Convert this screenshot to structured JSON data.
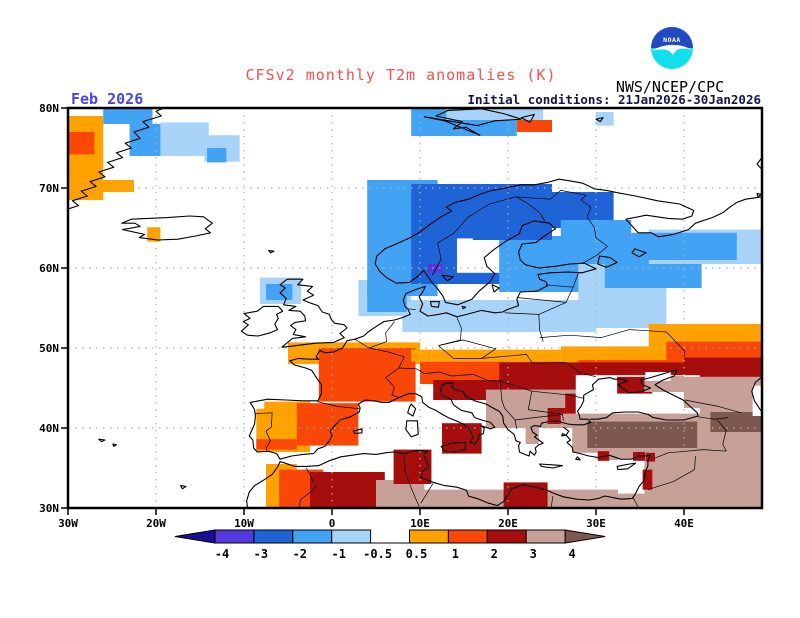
{
  "header": {
    "title": "CFSv2 monthly T2m anomalies (K)",
    "agency": "NWS/NCEP/CPC",
    "noaa_label": "NOAA",
    "date_label": "Feb 2026",
    "init_label": "Initial conditions: 21Jan2026-30Jan2026"
  },
  "colors": {
    "title": "#f75050",
    "date_label": "#4545e0",
    "init_label": "#15154d",
    "logo_blue": "#2448c0",
    "logo_cyan": "#12dfee",
    "grid": "#b2b2b2",
    "frame": "#000000",
    "classes": {
      "m_arrow": "#1c0d96",
      "m4": "#5639dd",
      "m3": "#1e64d6",
      "m2": "#42a3f5",
      "m1": "#a8d3f8",
      "white": "#ffffff",
      "p1": "#ffa200",
      "p2": "#f94708",
      "p3": "#a60d0d",
      "p4": "#c7a198",
      "p5": "#7d584e"
    }
  },
  "map": {
    "lat_ticks": [
      {
        "label": "80N",
        "lat": 80
      },
      {
        "label": "70N",
        "lat": 70
      },
      {
        "label": "60N",
        "lat": 60
      },
      {
        "label": "50N",
        "lat": 50
      },
      {
        "label": "40N",
        "lat": 40
      },
      {
        "label": "30N",
        "lat": 30
      }
    ],
    "lon_ticks": [
      {
        "label": "30W",
        "lon": -30
      },
      {
        "label": "20W",
        "lon": -20
      },
      {
        "label": "10W",
        "lon": -10
      },
      {
        "label": "0",
        "lon": 0
      },
      {
        "label": "10E",
        "lon": 10
      },
      {
        "label": "20E",
        "lon": 20
      },
      {
        "label": "30E",
        "lon": 30
      },
      {
        "label": "40E",
        "lon": 40
      }
    ],
    "gridlines": {
      "lats": [
        40,
        50,
        60,
        70
      ],
      "lons": [
        -20,
        -10,
        0,
        10,
        20,
        30,
        40
      ]
    },
    "coastlines": [
      "M -18 80.5 L -20 79.6 L -19.4 79 L -21.5 78.3 L -20.8 77.6 L -22.5 77 L -21.8 76.2 L -23.5 75.6 L -22.8 75 L -24.5 74.4 L -23.8 73.8 L -25.5 73.2 L -24.8 72.6 L -26.5 72 L -25.8 71.4 L -27.5 70.8 L -26.8 70.2 L -28.5 69.6 L -27.8 69 L -29.5 68.4 L -28.8 67.8 L -30.5 67.2",
      "M -22.4 65.6 L -23.9 65.6 L -22.8 66.1 L -20.9 66.2 L -18.7 66.3 L -16.2 66.5 L -14.6 66.4 L -13.6 65.6 L -14.4 64.9 L -13.8 64.4 L -15.5 64 L -17.5 63.6 L -19.8 63.5 L -21.9 63.8 L -21.3 64.2 L -23.8 64.8 L -21.8 65.2 Z",
      "M 10.5 78.9 L 12.8 78.4 L 16.8 76.6 L 15.2 77.6 L 13.8 77.4 L 14.8 78.3 L 11.8 79 L 13.2 79.7 L 17 79.9 L 19.5 79.3 L 21.5 78.6 L 18.5 78.4 L 16.5 77.8 Z M 21.5 78.8 L 23 79.2 L 22.5 78.2 Z",
      "M -5.1 58.6 L -3.3 58.6 L -3.9 57.9 L -2.2 57.7 L -2.8 57.1 L -2.1 56.6 L -3.3 56 L -2.4 55.6 L -1.6 55.3 L -1.1 54.5 L -0.3 54.2 L -0.1 53.6 L 0.3 53.1 L 1.4 52.9 L 1.7 52.5 L 0.9 51.8 L 1.4 51.3 L 0.2 50.7 L -1.9 50.6 L -3.4 50.4 L -4.8 50.2 L -5.7 50.1 L -4.5 51.2 L -3 51.4 L -4.4 51.7 L -4.1 52.3 L -4.7 52.8 L -4.2 53.2 L -3 53.4 L -3.1 54 L -3.6 54.6 L -4.9 54.7 L -4.1 55.2 L -5.5 55.4 L -5.2 56.2 L -5.9 56.9 L -5.3 57.5 L -5.9 57.9 Z",
      "M -6.1 55.2 L -7.8 55.2 L -8.5 54.6 L -10 54.3 L -9.3 53.7 L -10.1 53.3 L -9.5 52.9 L -10.3 52.1 L -9.6 51.6 L -8.4 51.5 L -7 51.9 L -6.2 52.3 L -6.5 53 L -6.1 53.7 L -6.3 54.2 L -5.6 54.6 Z",
      "M 48.86 68.9 L 47 68.6 L 46 68.2 L 45.2 67.6 L 44.4 66.9 L 43.2 66.3 L 41.3 65.6 L 40.5 64.8 L 38.8 64.2 L 37.1 63.9 L 36.3 64.4 L 34.8 64.4 L 33.4 66.1 L 35.7 66.6 L 38.2 66.2 L 39.8 66.1 L 40.9 66.5 L 41.1 67.2 L 39.5 68 L 37 68.4 L 34.5 69 L 32.5 69.4 L 31.2 69.7 L 29.8 69.9 L 28.5 70.6 L 27 70.9 L 25.8 71.1 L 24.5 70.7 L 23 70.4 L 21.4 70.4 L 19.8 70 L 18.2 69.7 L 16.8 69.2 L 15.5 68.6 L 14 68.2 L 13 67.6 L 13.6 67.1 L 12.4 66.4 L 11.2 65.5 L 10 64.5 L 8.9 63.8 L 7.3 63 L 6 62.4 L 5.1 61.5 L 4.9 60.5 L 5.4 59.6 L 6.2 58.8 L 7.3 58.1 L 8.8 58.2 L 9.8 59 L 10.4 59.7 L 10.8 59.1 L 11.3 58.3 L 12 57.4 L 12.6 56.5 L 12.9 55.7 L 14.3 55.4 L 15.9 56.1 L 16.7 57.1 L 18 58.3 L 18.5 59.3 L 17.6 60.2 L 17.3 61.3 L 18.4 62.3 L 19.7 63.3 L 21.3 64.3 L 21.6 65.3 L 23 65.9 L 24.7 65.6 L 25.4 64.9 L 24 63.9 L 23.2 63.2 L 21.6 63 L 21.2 62 L 21.4 61 L 22 60.4 L 23.5 60 L 25.3 60.2 L 27 60.5 L 28.7 60.6 L 30 59.9 L 28.4 59.4 L 26.8 59.5 L 24.8 59.4 L 23.4 59.2 L 23.6 58.6 L 24.3 58.3 L 24.5 57.8 L 23.3 57.1 L 21.4 57 L 21 56.1 L 21.2 55.3 L 19.9 54.8 L 19.4 54.5 L 18.5 54.4 L 17 54.7 L 15.3 54.2 L 14.2 53.9 L 13 54.4 L 12.1 54.2 L 10.9 54 L 10 54.6 L 10.3 55.5 L 9.9 56.4 L 10.4 57.2 L 10.6 57.7 L 9.5 57.3 L 8.4 56.8 L 8.1 56 L 8.3 55.2 L 8.6 54.9 L 8.9 54.2 L 8 53.8 L 7.1 53.5 L 5.9 53.3 L 4.9 52.6 L 4.1 52 L 3.6 51.5 L 2.6 51.1 L 1.7 50.9 L 1.2 50 L 0.2 49.5 L -0.8 49.4 L -1.4 49.7 L -1.8 48.9 L -1.5 48.6 L -2.7 48.6 L -3.8 48.7 L -4.8 48.4 L -4.3 47.9 L -3 47.5 L -2.3 47.2 L -1.9 46.5 L -1.2 45.4 L -1.2 44.3 L -1.6 43.4 L -3.4 43.4 L -5.2 43.5 L -7.3 43.6 L -9.3 43.2 L -8.8 42.3 L -8.7 41.5 L -8.8 40.5 L -9.4 39 L -9 38.5 L -8.9 37.5 L -8.5 37 L -7.2 37.1 L -6.3 36.8 L -5.9 36.1 L -4.6 36.5 L -3.3 36.7 L -2.1 36.8 L -1.6 37.4 L -0.8 37.7 L -0.3 38.4 L 0 39 L -0.2 39.6 L 0.3 40.3 L 0.9 41 L 2.1 41.4 L 3.1 42 L 3.2 42.5 L 3 43 L 3.8 43.5 L 4.8 43.4 L 5.6 43.2 L 6.5 43.2 L 7.4 43.7 L 8.7 44.3 L 9.5 44.3 L 10.2 43.9 L 10.3 43.2 L 11 42.6 L 11.8 42.2 L 12.4 41.8 L 13.2 41.3 L 14.1 40.9 L 14.9 40.5 L 15.5 40 L 15.8 39.5 L 16 38.9 L 15.7 38.2 L 16.2 38 L 16.6 38.5 L 16.7 39.1 L 17.2 39.3 L 17.3 40 L 16.9 40.3 L 18 39.9 L 18.5 40.1 L 18 40.7 L 17 41 L 16.2 41.3 L 15.9 41.9 L 14.7 42.2 L 13.8 42.9 L 13.5 43.6 L 12.6 44 L 12.3 44.8 L 12.5 45.3 L 13 45.6 L 13.8 45.6 L 13.6 45.1 L 14 44.8 L 14.9 44.5 L 15.3 43.9 L 16.2 43.4 L 17.5 43 L 18.3 42.5 L 19 42.1 L 19.4 41.5 L 19.5 40.6 L 20 39.8 L 20.7 39.2 L 20.9 38.4 L 21.4 38.2 L 21.2 37.8 L 21.3 37 L 21.9 36.7 L 22.4 36.5 L 22.5 37.1 L 23 36.6 L 23.2 37 L 23.1 37.5 L 23.5 37.9 L 24 38.1 L 23.5 38.5 L 23 38.9 L 23.3 39.1 L 22.8 39.5 L 22.6 40.1 L 23 40.3 L 23.7 40.2 L 23.8 40.6 L 24.6 40.8 L 25.6 40.9 L 26.1 40.7 L 26.8 40.5",
      "M 26.8 40.5 L 27.6 40.4 L 28.6 40.4 L 29.4 40.7 L 29.1 41.1 L 28.2 41.1 L 28.1 41.6 L 27.9 42.1 L 28.3 42.7 L 28.6 43.4 L 28.6 44.1 L 29.7 44.8 L 29.6 45.4 L 30.3 46.1 L 31.6 46.3 L 32.1 46.1 L 32.9 46.1 L 33.6 45.9 L 32.5 45.4 L 33.7 44.4 L 35.1 44.5 L 36.2 45 L 35.3 45.4 L 35.1 46 L 36.2 46.3 L 37.7 46.8 L 39.2 47.3 L 38.9 46.5 L 37.6 46 L 36.7 45.4 L 37.7 44.7 L 39.9 43.5 L 41.5 41.9 L 41.6 41.5 L 40 41 L 38 41 L 36.5 41.3 L 35.9 41.7 L 34.8 42 L 33.3 42 L 31.9 41.9 L 31.2 41.3 L 30.2 41.1 L 29.3 41.1",
      "M 26.3 40.1 L 26.9 39.6 L 26.6 39.1 L 27.1 38.5 L 26.7 38.2 L 27.3 37.6 L 27.4 37 L 28.2 36.8 L 29.2 36.5 L 30.3 36.3 L 31.5 36.6 L 32.8 36.1 L 34 36.1 L 34.9 36.5 L 35.6 36.5 L 36.2 36.6 L 35.9 36 L 35.9 35.3 L 35.6 34.5 L 35.5 33.5 L 34.9 32.7 L 34.4 31.6 L 34.1 31.2 L 32.9 31.1 L 31.9 31.3 L 31 31.5 L 30.3 31.2 L 29.2 31 L 27.8 31.1 L 26.3 31.4 L 25.3 31.8 L 24.4 32.2 L 23.2 32.6 L 21.7 32.9 L 20.4 32.4 L 20 31.7 L 19.5 30.8 L 18.8 30.3 L 17.8 30.6 L 16.7 31.1 L 15.5 31.5 L 15.3 32.2 L 14.2 32.6 L 12.8 32.8 L 11.8 33.1 L 10.8 33.5 L 10.1 33.8 L 10.3 34.6 L 11 35.1 L 10.7 36 L 10.4 36.7 L 10.9 37.1 L 10 37.2 L 9.2 37.1 L 8.3 36.8 L 7 37 L 6.1 36.9 L 5 36.7 L 3.6 36.8 L 2.3 36.6 L 1 36.4 L -0.3 35.9 L -1.5 35.3 L -2.9 35.2 L -4.3 35.2 L -5.3 35.6 L -5.9 35.8 L -6.2 35.1 L -6.8 34.2 L -7.6 33.6 L -8.8 32.8 L -9.4 32 L -9.7 30.9 L -9.6 30",
      "M 48.86 46.4 L 48.1 45.7 L 47.7 44.6 L 48 43.4 L 48.6 42.4 L 48.86 42",
      "M -7.2 62.2 L -6.6 62.1 L -7 61.9 Z M 11.2 55.8 L 12.2 55.8 L 12.1 55.1 L 11.3 55.2 Z M 18.2 57.9 L 19 57.5 L 18.4 57 Z M 12.5 59.1 L 13.8 58.9 L 13.1 58.4 Z M 30.4 61.5 L 31.6 61.3 L 32.4 60.7 L 31.2 60.1 L 30.2 60.5 Z M 34.4 62.4 L 35.7 61.9 L 34.9 61.4 L 34.1 61.9 Z M 9 43 L 9.5 42.4 L 9.2 41.5 L 8.6 41.9 L 8.8 42.6 Z M 8.5 40.9 L 9.7 40.9 L 9.8 39.2 L 9 38.9 L 8.4 39.8 Z M 12.4 37.7 L 13.6 38.1 L 15.2 38.2 L 15.1 37.3 L 14 37 L 12.9 37.1 Z M 23.6 35.5 L 25 35.4 L 26.2 35.3 L 25.1 35 L 23.8 35.2 Z M 32.4 35.2 L 33.8 35.5 L 34.5 35.6 L 33.6 34.9 L 32.5 34.8 Z M 2.4 39.6 L 3.4 39.9 L 3.4 39.4 L 2.6 39.3 Z M 27.9 36.4 L 28.2 36 L 27.7 36.1 Z M 26.2 39.3 L 26.6 39.1 L 26.1 39 Z M 30 78.6 L 30.8 78.8 L 30.5 78.3 Z M 48.86 73.8 L 48.3 73 L 48.86 72.3 M 14.8 55.2 L 15.2 55.1 L 14.9 54.9 Z M -26.5 38.6 L -25.8 38.5 L -26.2 38.3 Z M -24.9 38 L -24.5 37.9 L -24.8 37.7 Z M -17.2 32.8 L -16.6 32.7 L -17 32.4 Z M 48.3 69.3 L 48.8 69.2 L 48.4 68.9 Z"
    ],
    "borders": [
      "M 11.4 59.1 L 12.4 61.1 L 12 63.1 L 13.9 64.4 L 15.4 66.3 L 17.9 68 L 20.9 68.9 L 24.8 68.6",
      "M 24.2 65.8 L 23.6 66.9 L 22.2 68.1 L 20.9 68.9",
      "M 24.8 68.6 L 26 69.7 L 28.9 69.1",
      "M 28.5 60.6 L 30.1 61.6 L 31.3 62.7 L 30 63.8 L 29.8 65.1 L 29 66.3 L 29.4 67.6 L 28.3 68.5 L 28.9 69.1",
      "M 28 59.4 L 27.4 57.6 L 24.3 57.9",
      "M 27.4 57.6 L 26.6 55.7 L 21.1 56.3",
      "M 26.6 55.7 L 23.5 54.2 L 19.6 54.4",
      "M 23.5 54.2 L 23.6 52.2 L 24 50.8",
      "M 14.2 53.8 L 14.7 52.5 L 14.6 51 L 12.1 50.3",
      "M 12.1 50.3 L 14.9 51 L 18.6 49.9 L 17 48.7 L 13.8 48.7 L 12.1 50.3",
      "M 17 48.7 L 22.1 49.2 L 22.8 48.1 L 26.6 48.2",
      "M 7.1 53.3 L 6.1 51.9 L 6.2 50.8 L 4.2 50 L 2.6 51.1",
      "M 4.2 50 L 6.4 49.5 L 8.2 48.9 L 7.6 47.5",
      "M 7.6 47.5 L 9.6 47.4 L 10.5 46.8 L 12.2 47 L 13.6 46.5 L 16.1 46.7",
      "M 7.6 47.5 L 6.1 46.3 L 7.1 45.1 L 6.8 44.1 L 7.7 43.8",
      "M -1.7 43.3 L 0.6 42.7 L 3.2 42.4",
      "M -8.7 41.8 L -6.8 41.9 L -6.9 40.1 L -7.5 39.6 L -7 38.4 L -7.5 37.5 L -7.4 37.2",
      "M 8.6 54.9 L 9.5 54.8",
      "M 16.1 46.7 L 17.8 45.9 L 19.1 45.9 L 22.7 44.6 L 27.1 44.1 L 28.6 43.7",
      "M 22.7 44.6 L 22.3 42.3 L 26.2 41.7 L 26.3 40.9",
      "M 19.1 45.9 L 19.3 43.5 L 19.6 42.5 L 20.8 41 L 21 39.9",
      "M 20.8 41 L 23 41.3 L 26.2 41.7",
      "M 26.6 48.2 L 28.2 46.9 L 30 46.4",
      "M 23.6 51.3 L 27 51.6 L 30.6 51.3 L 33.8 52.3 L 38 52 L 40.1 49.6 L 40 48.9",
      "M 36.6 36.2 L 38.2 36.9 L 42.2 37.3 L 44.8 37.1",
      "M 35.9 32.3 L 38.8 33.3 L 41.2 34.8 L 41.3 36.5",
      "M 34.2 31.3 L 34.9 29.9",
      "M -2.9 35 L -1.8 32.6 L -3.6 31 L -3.7 30",
      "M 8.2 36.6 L 8.3 34.6 L 9.1 32.2 L 9.9 30.2",
      "M 11.5 33.1 L 10.1 30.6",
      "M 25.1 31.5 L 24.9 30",
      "M 40.1 43.5 L 43.9 42.7 L 46.5 41.9",
      "M 41.6 41.4 L 43.4 41.1 L 45 41.3",
      "M 43.7 41.1 L 44.8 39.7 L 44.4 38 L 44.8 37.1"
    ]
  },
  "chart_data": {
    "type": "heatmap",
    "title": "CFSv2 monthly T2m anomalies (K)",
    "units": "K",
    "lon_range": [
      -30,
      48.86
    ],
    "lat_range": [
      30,
      80
    ],
    "grid": "10-degree dotted graticule",
    "colorbar": {
      "labels": [
        "-4",
        "-3",
        "-2",
        "-1",
        "-0.5",
        "0.5",
        "1",
        "2",
        "3",
        "4"
      ],
      "segment_classes": [
        "m4",
        "m3",
        "m2",
        "m1",
        "white",
        "p1",
        "p2",
        "p3",
        "p4"
      ],
      "left_arrow_class": "m_arrow",
      "right_arrow_class": "p5"
    },
    "class_value_ranges": {
      "m_arrow": "< -4",
      "m4": "-4 to -3",
      "m3": "-3 to -2",
      "m2": "-2 to -1",
      "m1": "-1 to -0.5",
      "white": "-0.5 to 0.5",
      "p1": "0.5 to 1",
      "p2": "1 to 2",
      "p3": "2 to 3",
      "p4": "3 to 4",
      "p5": "> 4"
    },
    "anomaly_patches": [
      [
        "m2",
        -26,
        78,
        -20.4,
        80.45
      ],
      [
        "m2",
        -23,
        74,
        -19,
        78
      ],
      [
        "m1",
        -19.5,
        74,
        -14,
        78.2
      ],
      [
        "m1",
        -14.5,
        73.3,
        -10.5,
        76.6
      ],
      [
        "m2",
        -14.2,
        73.2,
        -12,
        75
      ],
      [
        "p1",
        -30,
        68.5,
        -26,
        79
      ],
      [
        "p2",
        -30,
        74.2,
        -27,
        77
      ],
      [
        "p1",
        -30,
        69.5,
        -22.5,
        71
      ],
      [
        "p1",
        -21,
        63.3,
        -19.5,
        65.1
      ],
      [
        "m2",
        9,
        76.5,
        21,
        80.45
      ],
      [
        "m1",
        13,
        78.5,
        24,
        80.45
      ],
      [
        "p2",
        21,
        77,
        25,
        78.5
      ],
      [
        "m1",
        30,
        77.8,
        32,
        79.5
      ],
      [
        "m1",
        8,
        52,
        30,
        56
      ],
      [
        "m1",
        3,
        54,
        9,
        58.5
      ],
      [
        "m2",
        4,
        54.5,
        8.5,
        58
      ],
      [
        "m1",
        -8.2,
        55.5,
        -3.5,
        58.8
      ],
      [
        "m2",
        -7.5,
        56,
        -4.5,
        58
      ],
      [
        "m2",
        4,
        56.5,
        12,
        71
      ],
      [
        "m3",
        9,
        58,
        21,
        70.5
      ],
      [
        "white",
        14.2,
        59.4,
        19.4,
        63.7
      ],
      [
        "m4",
        10.9,
        59.4,
        12.6,
        60.5
      ],
      [
        "m2",
        19,
        57,
        31,
        64
      ],
      [
        "m3",
        16,
        63.5,
        25,
        70.5
      ],
      [
        "m3",
        24,
        65,
        32,
        69.5
      ],
      [
        "m2",
        26,
        62,
        34,
        66
      ],
      [
        "m1",
        28,
        52.5,
        38,
        60.5
      ],
      [
        "m2",
        31,
        57.5,
        42,
        63.5
      ],
      [
        "m1",
        36,
        60.5,
        48.86,
        64.8
      ],
      [
        "m2",
        34,
        61,
        46,
        64.4
      ],
      [
        "p1",
        -5,
        48,
        10,
        50.7
      ],
      [
        "p2",
        -1.5,
        43.3,
        9.5,
        50
      ],
      [
        "p2",
        10,
        45.5,
        30,
        48.3
      ],
      [
        "p1",
        9,
        48.3,
        26,
        49.8
      ],
      [
        "p1",
        26,
        47.8,
        38,
        50.2
      ],
      [
        "p1",
        36,
        49.5,
        48.86,
        53
      ],
      [
        "p2",
        28,
        46,
        40,
        48.5
      ],
      [
        "p2",
        38,
        47.5,
        48.86,
        50.8
      ],
      [
        "p3",
        19,
        44,
        48.86,
        48.2
      ],
      [
        "p3",
        40,
        45,
        48.86,
        48.8
      ],
      [
        "p3",
        11.5,
        43.5,
        19,
        46
      ],
      [
        "p3",
        12.5,
        36.8,
        17,
        40.6
      ],
      [
        "p3",
        18.7,
        40,
        20.3,
        44.8
      ],
      [
        "p4",
        17.5,
        40,
        29,
        44.8
      ],
      [
        "p4",
        22,
        38,
        25.5,
        40.5
      ],
      [
        "p3",
        24.5,
        40.5,
        28.5,
        42.5
      ],
      [
        "p3",
        26.5,
        41.5,
        29,
        44.3
      ],
      [
        "white",
        27.7,
        40.9,
        41.8,
        46.6
      ],
      [
        "p3",
        32.4,
        44.3,
        36.4,
        46.4
      ],
      [
        "p4",
        35.5,
        44.5,
        40,
        46.5
      ],
      [
        "white",
        35.6,
        45.9,
        38.5,
        47
      ],
      [
        "p4",
        40,
        42.5,
        48.86,
        46.4
      ],
      [
        "p4",
        26,
        36,
        48.86,
        41.8
      ],
      [
        "p4",
        41.8,
        40.8,
        48.86,
        43
      ],
      [
        "white",
        23.5,
        35,
        30.2,
        36.9
      ],
      [
        "white",
        23.5,
        36.9,
        27.3,
        40
      ],
      [
        "p5",
        29,
        37.5,
        41.5,
        40.8
      ],
      [
        "p5",
        43,
        39.5,
        48.86,
        42
      ],
      [
        "white",
        47.8,
        41.5,
        48.86,
        45.3
      ],
      [
        "p1",
        -8.6,
        37,
        -2.5,
        43.3
      ],
      [
        "p2",
        -8.6,
        37.3,
        -4,
        38.6
      ],
      [
        "p2",
        -4,
        37.8,
        3,
        43.1
      ],
      [
        "white",
        -9.7,
        42.4,
        -7.7,
        43.6
      ],
      [
        "p1",
        -7.5,
        30,
        -4,
        35.5
      ],
      [
        "p2",
        -6,
        30,
        -1,
        34.8
      ],
      [
        "p3",
        -2.5,
        30,
        6,
        34.5
      ],
      [
        "p4",
        5,
        30,
        10.5,
        33.5
      ],
      [
        "p3",
        7,
        33,
        11.3,
        37.3
      ],
      [
        "p4",
        10.5,
        30,
        34,
        32.3
      ],
      [
        "p3",
        19.5,
        30,
        24.5,
        33.2
      ],
      [
        "p4",
        34,
        30,
        48.86,
        36.5
      ],
      [
        "white",
        32.5,
        31.8,
        35.5,
        36.2
      ],
      [
        "p3",
        35.3,
        32.3,
        36.4,
        34.8
      ],
      [
        "p3",
        30.2,
        35.9,
        31.5,
        37.1
      ],
      [
        "p3",
        34.2,
        35.9,
        35.6,
        37
      ],
      [
        "p3",
        35.7,
        35.8,
        36.7,
        36.9
      ]
    ]
  }
}
